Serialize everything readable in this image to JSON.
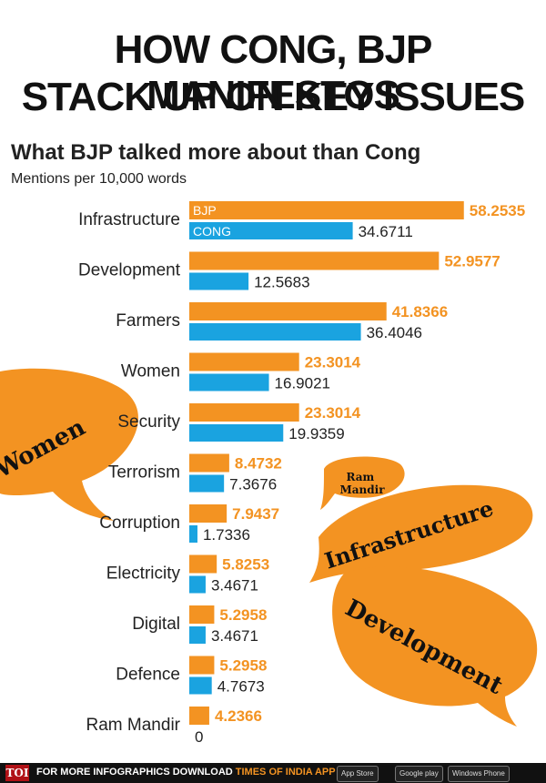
{
  "headline": {
    "line1": "HOW CONG, BJP MANIFESTOS",
    "line2": "STACK UP ON KEY ISSUES"
  },
  "chart_data": {
    "type": "bar",
    "orientation": "horizontal",
    "title": "What BJP talked more about than Cong",
    "subtitle": "Mentions per 10,000 words",
    "categories": [
      "Infrastructure",
      "Development",
      "Farmers",
      "Women",
      "Security",
      "Terrorism",
      "Corruption",
      "Electricity",
      "Digital",
      "Defence",
      "Ram Mandir"
    ],
    "series": [
      {
        "name": "BJP",
        "color": "#f39322",
        "values": [
          58.2535,
          52.9577,
          41.8366,
          23.3014,
          23.3014,
          8.4732,
          7.9437,
          5.8253,
          5.2958,
          5.2958,
          4.2366
        ]
      },
      {
        "name": "CONG",
        "color": "#1aa3e0",
        "values": [
          34.6711,
          12.5683,
          36.4046,
          16.9021,
          19.9359,
          7.3676,
          1.7336,
          3.4671,
          3.4671,
          4.7673,
          0
        ]
      }
    ],
    "value_labels": {
      "BJP": [
        "58.2535",
        "52.9577",
        "41.8366",
        "23.3014",
        "23.3014",
        "8.4732",
        "7.9437",
        "5.8253",
        "5.2958",
        "5.2958",
        "4.2366"
      ],
      "CONG": [
        "34.6711",
        "12.5683",
        "36.4046",
        "16.9021",
        "19.9359",
        "7.3676",
        "1.7336",
        "3.4671",
        "3.4671",
        "4.7673",
        "0"
      ]
    },
    "legend": "inside first bars",
    "grid": false
  },
  "bubbles": {
    "women": "Women",
    "ram_mandir": "Ram Mandir",
    "infrastructure": "Infrastructure",
    "development": "Development"
  },
  "footer": {
    "logo": "TOI",
    "text": "FOR MORE INFOGRAPHICS DOWNLOAD",
    "brand": "TIMES OF INDIA APP",
    "app_store": "App Store",
    "google_play": "Google play",
    "windows_phone": "Windows Phone"
  },
  "colors": {
    "bjp": "#f39322",
    "cong": "#1aa3e0",
    "footer_bg": "#111111"
  }
}
